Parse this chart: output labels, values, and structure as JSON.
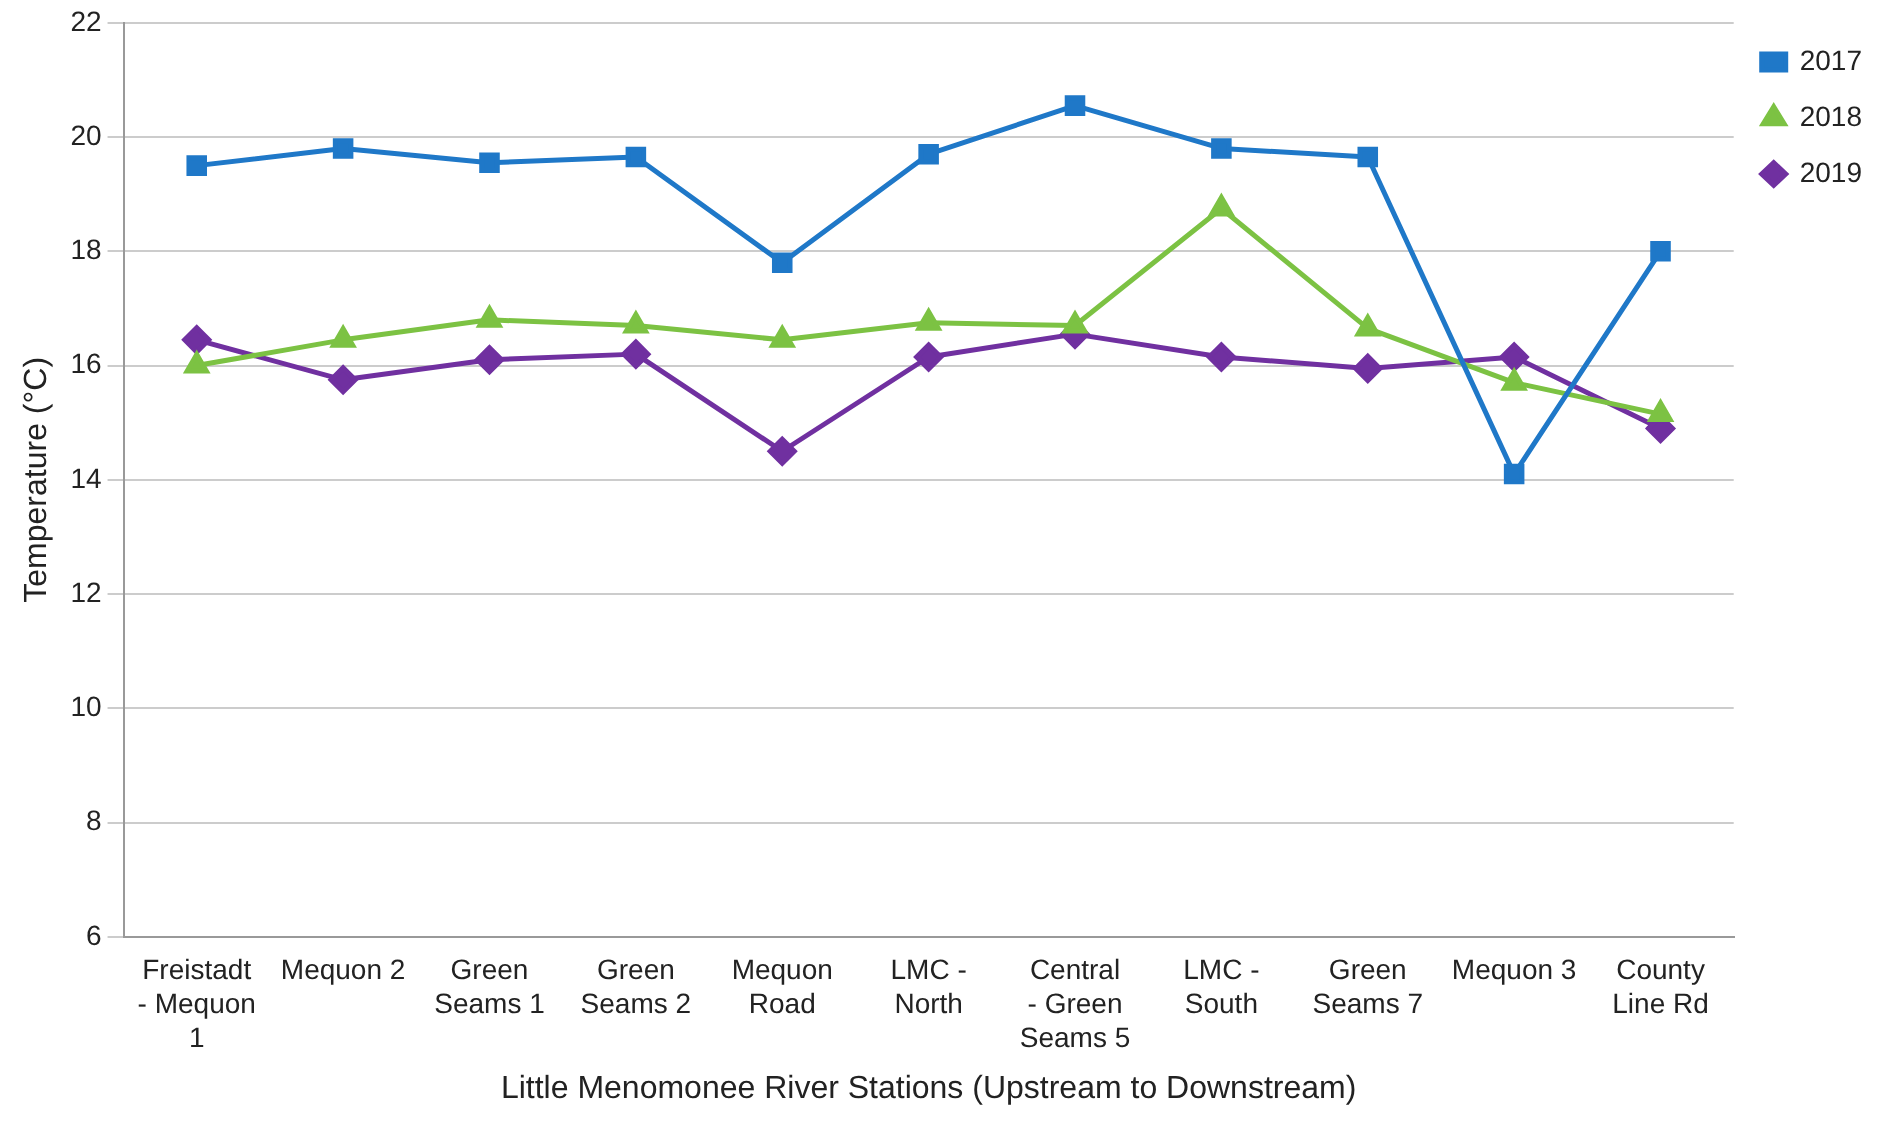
{
  "chart_data": {
    "type": "line",
    "xlabel": "Little Menomonee River Stations (Upstream to Downstream)",
    "ylabel": "Temperature (°C)",
    "categories": [
      "Freistadt - Mequon 1",
      "Mequon 2",
      "Green Seams 1",
      "Green Seams 2",
      "Mequon Road",
      "LMC - North",
      "Central - Green Seams 5",
      "LMC - South",
      "Green Seams 7",
      "Mequon 3",
      "County Line Rd"
    ],
    "series": [
      {
        "name": "2017",
        "color": "#1f78c8",
        "marker": "square",
        "values": [
          19.5,
          19.8,
          19.55,
          19.65,
          17.8,
          19.7,
          20.55,
          19.8,
          19.65,
          14.1,
          18.0
        ]
      },
      {
        "name": "2018",
        "color": "#7cc243",
        "marker": "triangle",
        "values": [
          16.0,
          16.45,
          16.8,
          16.7,
          16.45,
          16.75,
          16.7,
          18.75,
          16.65,
          15.7,
          15.15
        ]
      },
      {
        "name": "2019",
        "color": "#7030a0",
        "marker": "diamond",
        "values": [
          16.45,
          15.75,
          16.1,
          16.2,
          14.5,
          16.15,
          16.55,
          16.15,
          15.95,
          16.15,
          14.9
        ]
      }
    ],
    "ylim": [
      6,
      22
    ],
    "yticks": [
      6,
      8,
      10,
      12,
      14,
      16,
      18,
      20,
      22
    ],
    "grid": "y",
    "legend": "right",
    "line_style": "solid"
  }
}
